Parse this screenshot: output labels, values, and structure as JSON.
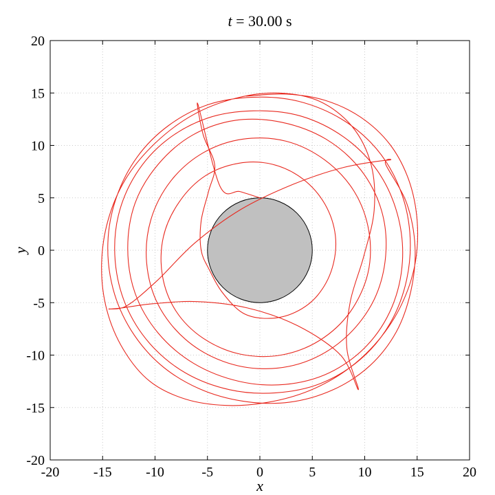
{
  "chart_data": {
    "type": "line",
    "title_prefix": "t",
    "title_rest": " = 30.00 s",
    "xlabel": "x",
    "ylabel": "y",
    "xlim": [
      -20,
      20
    ],
    "ylim": [
      -20,
      20
    ],
    "xticks": [
      -20,
      -15,
      -10,
      -5,
      0,
      5,
      10,
      15,
      20
    ],
    "yticks": [
      -20,
      -15,
      -10,
      -5,
      0,
      5,
      10,
      15,
      20
    ],
    "grid": true,
    "colors": {
      "trajectory": "#e8281e",
      "obstacle_fill": "#c0c0c0",
      "obstacle_edge": "#000000"
    },
    "obstacle": {
      "shape": "circle",
      "center": [
        0,
        0
      ],
      "radius": 5
    },
    "series": [
      {
        "points": [
          [
            0,
            5
          ],
          [
            -1.9,
            5.6
          ],
          [
            -3.8,
            6.1
          ],
          [
            -5.9,
            13.9
          ],
          [
            -5.4,
            11
          ],
          [
            -4.3,
            8.1
          ],
          [
            -4.9,
            5.6
          ],
          [
            -5.6,
            2.8
          ],
          [
            -5.6,
            0
          ],
          [
            -4.8,
            -1.9
          ],
          [
            -3.6,
            -4.0
          ],
          [
            -1.6,
            -6.0
          ],
          [
            0.9,
            -6.5
          ],
          [
            3.4,
            -5.9
          ],
          [
            5.5,
            -4.3
          ],
          [
            6.9,
            -1.7
          ],
          [
            7.2,
            1.4
          ],
          [
            6.2,
            4.4
          ],
          [
            4.1,
            6.8
          ],
          [
            1.2,
            8.2
          ],
          [
            -2.0,
            8.3
          ],
          [
            -5.2,
            7.1
          ],
          [
            -7.7,
            4.6
          ],
          [
            -9.2,
            1.3
          ],
          [
            -9.3,
            -2.4
          ],
          [
            -8.0,
            -5.8
          ],
          [
            -5.4,
            -8.4
          ],
          [
            -1.9,
            -9.9
          ],
          [
            2.0,
            -10.0
          ],
          [
            5.7,
            -8.6
          ],
          [
            8.6,
            -5.9
          ],
          [
            10.3,
            -2.2
          ],
          [
            10.4,
            1.8
          ],
          [
            9.0,
            5.6
          ],
          [
            6.2,
            8.6
          ],
          [
            2.5,
            10.4
          ],
          [
            -1.6,
            10.6
          ],
          [
            -5.4,
            9.3
          ],
          [
            -8.5,
            6.6
          ],
          [
            -10.4,
            2.9
          ],
          [
            -10.8,
            -1.2
          ],
          [
            -9.7,
            -5.2
          ],
          [
            -7.1,
            -8.5
          ],
          [
            -3.5,
            -10.6
          ],
          [
            0.6,
            -11.3
          ],
          [
            4.7,
            -10.5
          ],
          [
            8.3,
            -8.2
          ],
          [
            10.9,
            -4.7
          ],
          [
            12.0,
            -0.5
          ],
          [
            11.6,
            3.8
          ],
          [
            9.6,
            7.7
          ],
          [
            6.3,
            10.6
          ],
          [
            2.1,
            12.2
          ],
          [
            -2.3,
            12.4
          ],
          [
            -6.4,
            11.0
          ],
          [
            -9.7,
            8.2
          ],
          [
            -11.9,
            4.5
          ],
          [
            -12.6,
            0.2
          ],
          [
            -11.9,
            -4.1
          ],
          [
            -9.7,
            -7.9
          ],
          [
            -6.3,
            -10.8
          ],
          [
            -2.0,
            -12.5
          ],
          [
            2.4,
            -12.8
          ],
          [
            6.6,
            -11.7
          ],
          [
            10.2,
            -9.1
          ],
          [
            12.6,
            -5.4
          ],
          [
            13.6,
            -1.0
          ],
          [
            13.1,
            3.5
          ],
          [
            11.2,
            7.6
          ],
          [
            8.0,
            10.8
          ],
          [
            3.9,
            12.8
          ],
          [
            -0.6,
            13.3
          ],
          [
            -5.0,
            12.6
          ],
          [
            -8.9,
            10.5
          ],
          [
            -11.8,
            7.3
          ],
          [
            -13.5,
            3.3
          ],
          [
            -13.8,
            -1.0
          ],
          [
            -12.8,
            -5.2
          ],
          [
            -10.5,
            -8.9
          ],
          [
            -7.1,
            -11.7
          ],
          [
            -2.9,
            -13.3
          ],
          [
            1.5,
            -13.6
          ],
          [
            5.8,
            -12.7
          ],
          [
            9.6,
            -10.4
          ],
          [
            12.4,
            -7.0
          ],
          [
            14.0,
            -2.8
          ],
          [
            14.3,
            1.7
          ],
          [
            13.3,
            6.0
          ],
          [
            11.1,
            9.7
          ],
          [
            7.8,
            12.5
          ],
          [
            3.7,
            14.2
          ],
          [
            -0.6,
            14.6
          ],
          [
            -4.9,
            13.9
          ],
          [
            -8.7,
            11.9
          ],
          [
            -11.7,
            8.9
          ],
          [
            -13.7,
            5.0
          ],
          [
            -14.5,
            0.7
          ],
          [
            -14.0,
            -3.7
          ],
          [
            -12.3,
            -7.6
          ],
          [
            -9.5,
            -10.9
          ],
          [
            -5.8,
            -13.2
          ],
          [
            -1.6,
            -14.4
          ],
          [
            2.8,
            -14.5
          ],
          [
            7.0,
            -13.3
          ],
          [
            10.5,
            -11.0
          ],
          [
            13.0,
            -7.8
          ],
          [
            14.4,
            -3.9
          ],
          [
            14.8,
            0.3
          ],
          [
            14.0,
            4.5
          ],
          [
            12.0,
            8.2
          ],
          [
            12.3,
            8.6
          ],
          [
            8.0,
            7.9
          ],
          [
            3.2,
            6.3
          ],
          [
            -1.8,
            3.9
          ],
          [
            -6.2,
            0.7
          ],
          [
            -9.8,
            -2.9
          ],
          [
            -12.7,
            -5.3
          ],
          [
            -14.4,
            -5.6
          ],
          [
            -13.2,
            -5.5
          ],
          [
            -10.2,
            -5.1
          ],
          [
            -6.0,
            -4.9
          ],
          [
            -1.2,
            -5.5
          ],
          [
            3.6,
            -7.2
          ],
          [
            7.7,
            -10.0
          ],
          [
            9.4,
            -13.3
          ],
          [
            8.3,
            -9.4
          ],
          [
            8.6,
            -5.0
          ],
          [
            9.9,
            -0.6
          ],
          [
            10.9,
            3.8
          ],
          [
            10.6,
            8.2
          ],
          [
            8.8,
            11.8
          ],
          [
            5.7,
            14.2
          ],
          [
            1.8,
            15.0
          ],
          [
            -2.3,
            14.5
          ],
          [
            -6.4,
            12.9
          ],
          [
            -10.0,
            10.2
          ],
          [
            -12.8,
            6.8
          ],
          [
            -14.5,
            2.8
          ],
          [
            -15.1,
            -1.5
          ],
          [
            -14.6,
            -5.7
          ],
          [
            -13.0,
            -9.5
          ],
          [
            -10.5,
            -12.5
          ],
          [
            -7.1,
            -14.2
          ],
          [
            -3.2,
            -14.8
          ],
          [
            0.8,
            -14.5
          ],
          [
            4.7,
            -13.4
          ],
          [
            8.3,
            -11.4
          ],
          [
            11.3,
            -8.6
          ],
          [
            13.5,
            -5.2
          ],
          [
            14.8,
            -1.3
          ],
          [
            15.0,
            2.8
          ],
          [
            14.2,
            6.7
          ],
          [
            12.4,
            10.1
          ],
          [
            9.6,
            12.7
          ],
          [
            6.2,
            14.3
          ],
          [
            2.5,
            14.9
          ],
          [
            -1.3,
            14.7
          ]
        ]
      }
    ]
  }
}
